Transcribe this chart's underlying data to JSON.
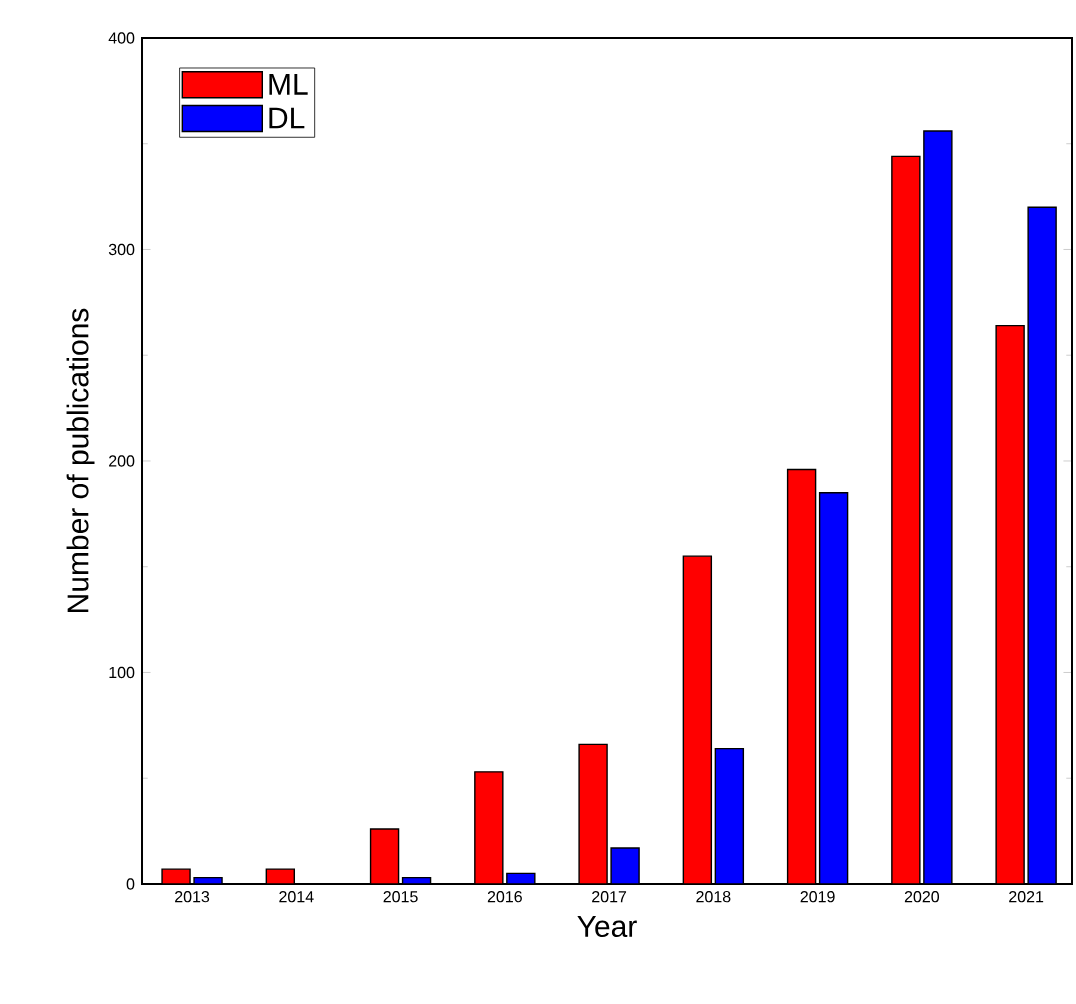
{
  "chart_data": {
    "type": "bar",
    "xlabel": "Year",
    "ylabel": "Number of publications",
    "categories": [
      "2013",
      "2014",
      "2015",
      "2016",
      "2017",
      "2018",
      "2019",
      "2020",
      "2021"
    ],
    "series": [
      {
        "name": "ML",
        "color": "#ff0000",
        "values": [
          7,
          7,
          26,
          53,
          66,
          155,
          196,
          344,
          264
        ]
      },
      {
        "name": "DL",
        "color": "#0000ff",
        "values": [
          3,
          0,
          3,
          5,
          17,
          64,
          185,
          356,
          320
        ]
      }
    ],
    "ylim": [
      0,
      400
    ],
    "yticks": [
      0,
      100,
      200,
      300,
      400
    ],
    "grid": false,
    "legend": "top left"
  }
}
